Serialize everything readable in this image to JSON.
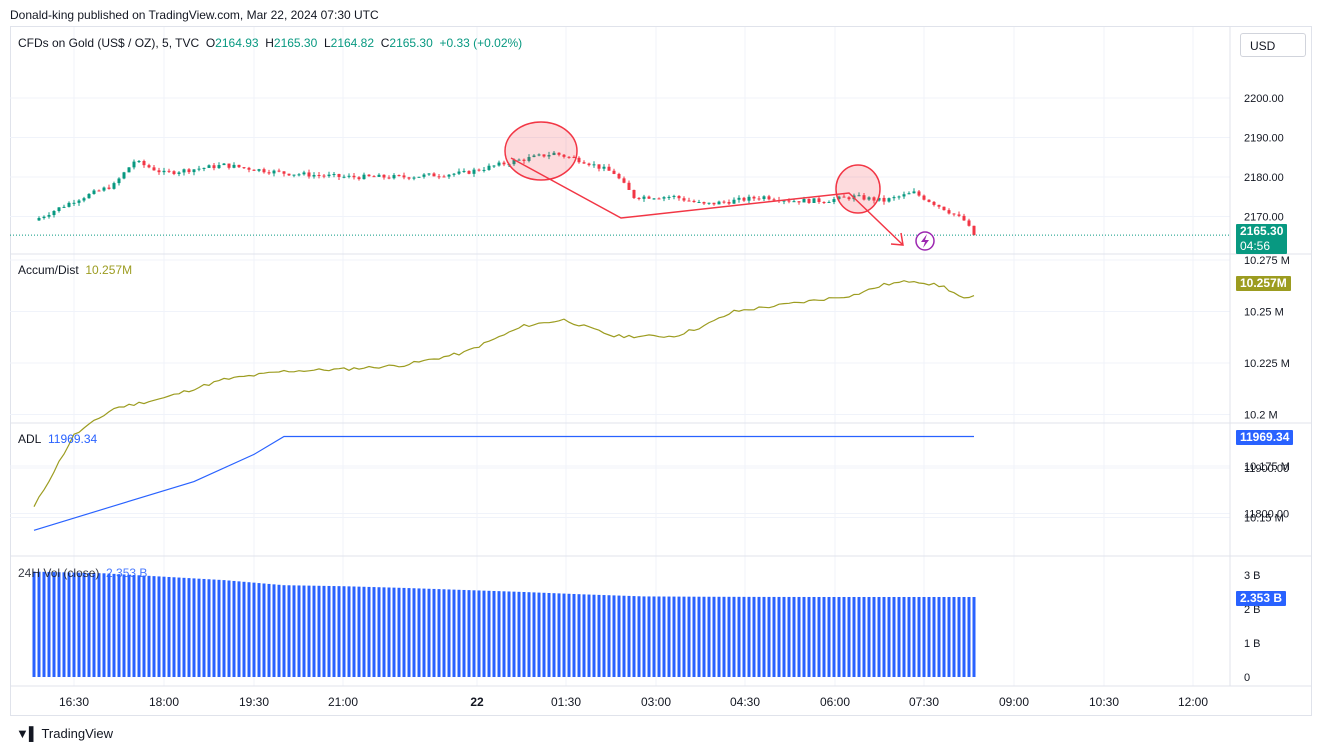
{
  "header": {
    "published": "Donald-king published on TradingView.com, Mar 22, 2024 07:30 UTC"
  },
  "toolbar": {
    "currency": "USD"
  },
  "legend_main": {
    "symbol": "CFDs on Gold (US$ / OZ), 5, TVC",
    "o_label": "O",
    "o": "2164.93",
    "h_label": "H",
    "h": "2165.30",
    "l_label": "L",
    "l": "2164.82",
    "c_label": "C",
    "c": "2165.30",
    "change": "+0.33 (+0.02%)"
  },
  "badges": {
    "price": "2165.30",
    "countdown": "04:56",
    "accum": "10.257M",
    "adl": "11969.34",
    "vol": "2.353 B"
  },
  "footer": {
    "brand": "TradingView"
  },
  "colors": {
    "up": "#089981",
    "down": "#f23645",
    "accum": "#9c9c20",
    "adl": "#2962ff",
    "vol": "#2962ff",
    "annotation": "#f23645"
  },
  "chart_data": [
    {
      "type": "candlestick",
      "title": "CFDs on Gold (US$ / OZ), 5, TVC",
      "x_ticks": [
        "16:30",
        "18:00",
        "19:30",
        "21:00",
        "22",
        "01:30",
        "03:00",
        "04:30",
        "06:00",
        "07:30",
        "09:00",
        "10:30",
        "12:00"
      ],
      "y_ticks": [
        "2200.00",
        "2190.00",
        "2180.00",
        "2170.00"
      ],
      "ylim": [
        2163,
        2210
      ],
      "last": 2165.3,
      "series": [
        {
          "name": "close (approx.)",
          "x": [
            "15:50",
            "16:30",
            "17:10",
            "17:30",
            "18:00",
            "18:30",
            "19:00",
            "19:30",
            "20:00",
            "21:00",
            "22:00",
            "23:00",
            "23:50",
            "00:30",
            "01:00",
            "01:30",
            "01:50",
            "02:30",
            "03:00",
            "03:30",
            "04:00",
            "04:30",
            "05:00",
            "05:30",
            "06:00",
            "06:30",
            "07:00",
            "07:20",
            "07:30"
          ],
          "values": [
            2169,
            2174,
            2178,
            2184,
            2181,
            2182,
            2183,
            2182,
            2181,
            2180,
            2180,
            2181,
            2184,
            2186,
            2184,
            2181,
            2175,
            2175,
            2173,
            2174,
            2175,
            2174,
            2174,
            2175,
            2174,
            2176,
            2172,
            2169,
            2165.3
          ]
        }
      ]
    },
    {
      "type": "line",
      "title": "Accum/Dist",
      "value_label": "10.257M",
      "y_ticks": [
        "10.275 M",
        "10.25 M",
        "10.225 M",
        "10.2 M",
        "10.175 M",
        "10.15 M"
      ],
      "series": [
        {
          "name": "Accum/Dist",
          "x": [
            "15:50",
            "16:30",
            "17:10",
            "18:00",
            "19:00",
            "20:00",
            "21:00",
            "22:00",
            "23:00",
            "00:00",
            "00:40",
            "01:30",
            "02:30",
            "03:00",
            "03:30",
            "04:30",
            "05:30",
            "06:00",
            "06:30",
            "07:00",
            "07:20",
            "07:30"
          ],
          "values": [
            10.155,
            10.19,
            10.203,
            10.208,
            10.217,
            10.221,
            10.222,
            10.224,
            10.23,
            10.243,
            10.246,
            10.238,
            10.238,
            10.243,
            10.25,
            10.254,
            10.258,
            10.263,
            10.265,
            10.262,
            10.256,
            10.257
          ]
        }
      ]
    },
    {
      "type": "line",
      "title": "ADL",
      "value_label": "11969.34",
      "y_ticks": [
        "11900.00",
        "11800.00"
      ],
      "series": [
        {
          "name": "ADL",
          "x": [
            "15:50",
            "17:00",
            "18:30",
            "19:30",
            "20:00",
            "21:00",
            "23:00",
            "01:00",
            "03:00",
            "05:00",
            "07:30"
          ],
          "values": [
            11763,
            11810,
            11870,
            11930,
            11969.34,
            11969.34,
            11969.34,
            11969.34,
            11969.34,
            11969.34,
            11969.34
          ]
        }
      ]
    },
    {
      "type": "bar",
      "title": "24H Vol (close)",
      "value_label": "2.353 B",
      "y_ticks": [
        "3 B",
        "2 B",
        "1 B",
        "0"
      ],
      "series": [
        {
          "name": "24H Vol (close)",
          "x": [
            "15:50",
            "17:00",
            "18:00",
            "19:00",
            "20:00",
            "21:00",
            "22:00",
            "23:00",
            "00:00",
            "01:00",
            "02:00",
            "03:00",
            "04:00",
            "05:00",
            "06:00",
            "07:30"
          ],
          "values": [
            3.1,
            3.05,
            2.95,
            2.85,
            2.7,
            2.67,
            2.62,
            2.56,
            2.5,
            2.43,
            2.37,
            2.36,
            2.355,
            2.353,
            2.353,
            2.353
          ]
        }
      ]
    }
  ]
}
